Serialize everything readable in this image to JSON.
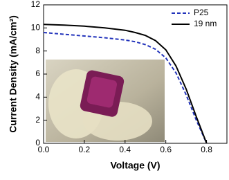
{
  "chart_data": {
    "type": "line",
    "x_label": "Voltage (V)",
    "y_label": "Current Density (mA/cm²)",
    "x": [
      0,
      0.1,
      0.2,
      0.3,
      0.4,
      0.45,
      0.5,
      0.55,
      0.6,
      0.65,
      0.7,
      0.75,
      0.8
    ],
    "series": [
      {
        "name": "P25",
        "color": "#2233bb",
        "linestyle": "dashed",
        "values": [
          9.6,
          9.45,
          9.3,
          9.15,
          8.95,
          8.8,
          8.55,
          8.15,
          7.4,
          6.1,
          4.2,
          2.0,
          0
        ]
      },
      {
        "name": "19 nm",
        "color": "#000000",
        "linestyle": "solid",
        "values": [
          10.3,
          10.25,
          10.15,
          10.0,
          9.8,
          9.6,
          9.35,
          8.9,
          8.1,
          6.7,
          4.7,
          2.3,
          0
        ]
      }
    ],
    "xlim": [
      0,
      0.9
    ],
    "xticks": [
      {
        "value": 0,
        "label": "0.0"
      },
      {
        "value": 0.2,
        "label": "0.2"
      },
      {
        "value": 0.4,
        "label": "0.4"
      },
      {
        "value": 0.6,
        "label": "0.6"
      },
      {
        "value": 0.8,
        "label": "0.8"
      }
    ],
    "ylim": [
      0,
      12
    ],
    "yticks": [
      0,
      2,
      4,
      6,
      8,
      10,
      12
    ],
    "legend": "upper right"
  }
}
